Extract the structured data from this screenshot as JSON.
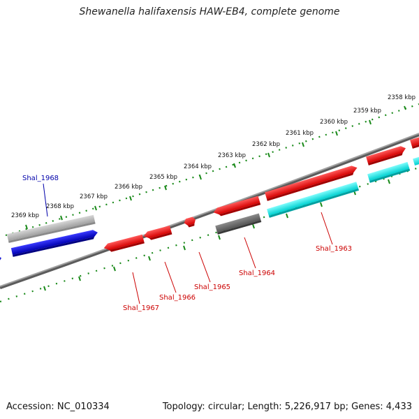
{
  "title": "Shewanella halifaxensis HAW-EB4, complete genome",
  "footer": {
    "accession_label": "Accession:",
    "accession": "NC_010334",
    "topology_label": "Topology:",
    "topology": "circular",
    "length_label": "Length:",
    "length": "5,226,917 bp",
    "genes_label": "Genes:",
    "genes": "4,433"
  },
  "tick_labels": [
    "2358 kbp",
    "2359 kbp",
    "2360 kbp",
    "2361 kbp",
    "2362 kbp",
    "2363 kbp",
    "2364 kbp",
    "2365 kbp",
    "2366 kbp",
    "2367 kbp",
    "2368 kbp",
    "2369 kbp"
  ],
  "gene_labels": [
    "Shal_1963",
    "Shal_1964",
    "Shal_1965",
    "Shal_1966",
    "Shal_1967",
    "Shal_1968"
  ],
  "colors": {
    "backbone": "#808080",
    "ticks": "#1a8a1a",
    "red_gene": "#ff0000",
    "cyan_gene": "#00e5e5",
    "gray_gene": "#707070",
    "lightgray_gene": "#b8b8b8",
    "blue_gene": "#0000dd",
    "red_label": "#cc0000",
    "blue_label": "#0000aa"
  }
}
